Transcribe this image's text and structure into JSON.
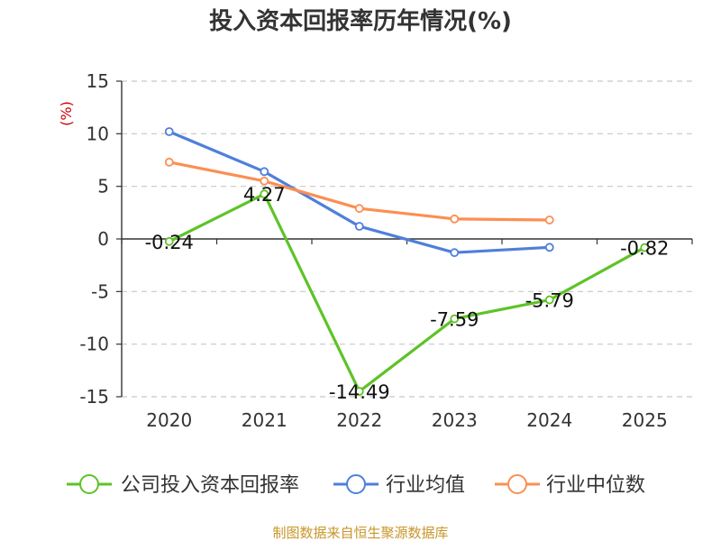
{
  "chart_data": {
    "type": "line",
    "title": "投入资本回报率历年情况(%)",
    "ylabel": "(%)",
    "xlabel": "",
    "categories": [
      "2020",
      "2021",
      "2022",
      "2023",
      "2024",
      "2025"
    ],
    "ylim": [
      -15,
      15
    ],
    "yticks": [
      15,
      10,
      5,
      0,
      -5,
      -10,
      -15
    ],
    "grid": true,
    "legend_position": "bottom",
    "series": [
      {
        "name": "公司投入资本回报率",
        "color": "#5ec328",
        "values": [
          -0.24,
          4.27,
          -14.49,
          -7.59,
          -5.79,
          -0.82
        ],
        "labels": [
          "-0.24",
          "4.27",
          "-14.49",
          "-7.59",
          "-5.79",
          "-0.82"
        ]
      },
      {
        "name": "行业均值",
        "color": "#4f7fdb",
        "values": [
          10.2,
          6.4,
          1.2,
          -1.3,
          -0.8,
          null
        ]
      },
      {
        "name": "行业中位数",
        "color": "#fb8f53",
        "values": [
          7.3,
          5.5,
          2.9,
          1.9,
          1.8,
          null
        ]
      }
    ]
  },
  "footer": {
    "source": "制图数据来自恒生聚源数据库"
  }
}
